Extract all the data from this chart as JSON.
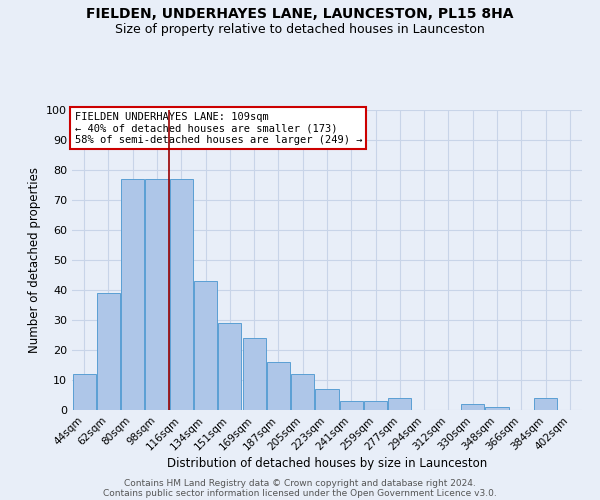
{
  "title": "FIELDEN, UNDERHAYES LANE, LAUNCESTON, PL15 8HA",
  "subtitle": "Size of property relative to detached houses in Launceston",
  "xlabel": "Distribution of detached houses by size in Launceston",
  "ylabel": "Number of detached properties",
  "categories": [
    "44sqm",
    "62sqm",
    "80sqm",
    "98sqm",
    "116sqm",
    "134sqm",
    "151sqm",
    "169sqm",
    "187sqm",
    "205sqm",
    "223sqm",
    "241sqm",
    "259sqm",
    "277sqm",
    "294sqm",
    "312sqm",
    "330sqm",
    "348sqm",
    "366sqm",
    "384sqm",
    "402sqm"
  ],
  "values": [
    12,
    39,
    77,
    77,
    77,
    43,
    29,
    24,
    16,
    12,
    7,
    3,
    3,
    4,
    0,
    0,
    2,
    1,
    0,
    4,
    0
  ],
  "bar_color": "#aec6e8",
  "bar_edge_color": "#5a9fd4",
  "grid_color": "#c8d4e8",
  "bg_color": "#e8eef8",
  "red_line_x": 3.5,
  "annotation_text": "FIELDEN UNDERHAYES LANE: 109sqm\n← 40% of detached houses are smaller (173)\n58% of semi-detached houses are larger (249) →",
  "annotation_box_color": "#ffffff",
  "annotation_box_edge": "#cc0000",
  "ylim": [
    0,
    100
  ],
  "yticks": [
    0,
    10,
    20,
    30,
    40,
    50,
    60,
    70,
    80,
    90,
    100
  ],
  "footer1": "Contains HM Land Registry data © Crown copyright and database right 2024.",
  "footer2": "Contains public sector information licensed under the Open Government Licence v3.0."
}
